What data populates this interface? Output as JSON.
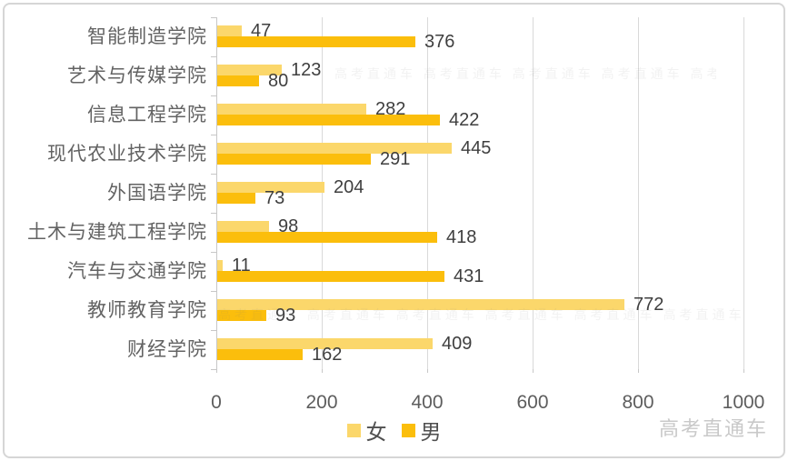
{
  "chart_data": {
    "type": "bar",
    "orientation": "horizontal",
    "title": "",
    "categories": [
      "智能制造学院",
      "艺术与传媒学院",
      "信息工程学院",
      "现代农业技术学院",
      "外国语学院",
      "土木与建筑工程学院",
      "汽车与交通学院",
      "教师教育学院",
      "财经学院"
    ],
    "series": [
      {
        "name": "女",
        "color": "#FBD76B",
        "values": [
          47,
          123,
          282,
          445,
          204,
          98,
          11,
          772,
          409
        ]
      },
      {
        "name": "男",
        "color": "#FBBE0C",
        "values": [
          376,
          80,
          422,
          291,
          73,
          418,
          431,
          93,
          162
        ]
      }
    ],
    "xlim": [
      0,
      1000
    ],
    "x_ticks": [
      0,
      200,
      400,
      600,
      800,
      1000
    ],
    "grid": "vertical",
    "legend_position": "bottom",
    "value_labels": true
  },
  "legend": {
    "female_label": "女",
    "male_label": "男"
  },
  "watermark": {
    "text": "高考直通车"
  },
  "faint_watermark": {
    "text": "高考直通车 高考直通车 高考直通车 高考直通车 高考直通车 高考直通车 高考直通车"
  },
  "colors": {
    "female_bar": "#FBD76B",
    "male_bar": "#FBBE0C",
    "gridline": "#d9d9d9",
    "axis_text": "#5d5d5d",
    "category_text": "#636363",
    "value_text": "#3f3f3f",
    "watermark_text": "#c9c9c9",
    "frame_border": "#d6d6d6"
  }
}
